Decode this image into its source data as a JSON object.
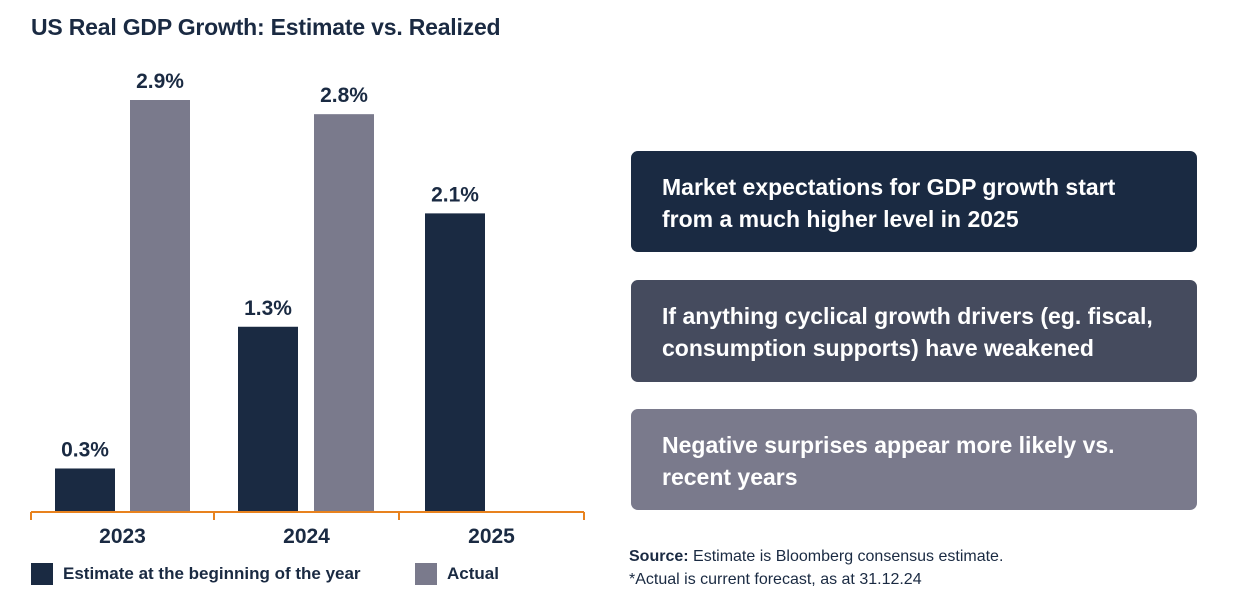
{
  "chart_data": {
    "type": "bar",
    "title": "US Real GDP Growth: Estimate vs. Realized",
    "categories": [
      "2023",
      "2024",
      "2025"
    ],
    "series": [
      {
        "name": "Estimate at the beginning of the year",
        "color": "#1a2a42",
        "values": [
          0.3,
          1.3,
          2.1
        ],
        "labels": [
          "0.3%",
          "1.3%",
          "2.1%"
        ]
      },
      {
        "name": "Actual",
        "color": "#7a7a8c",
        "values": [
          2.9,
          2.8,
          null
        ],
        "labels": [
          "2.9%",
          "2.8%",
          ""
        ]
      }
    ],
    "ylim": [
      0,
      2.9
    ],
    "xlabel": "",
    "ylabel": "",
    "axis_color": "#e8821e"
  },
  "legend": {
    "estimate_label": "Estimate at the beginning of the year",
    "actual_label": "Actual"
  },
  "boxes": [
    {
      "text": "Market expectations for GDP growth start from a much higher level in 2025"
    },
    {
      "text": "If anything cyclical growth drivers (eg. fiscal, consumption supports) have weakened"
    },
    {
      "text": "Negative surprises appear more likely vs. recent years"
    }
  ],
  "source": {
    "label": "Source:",
    "text": " Estimate is Bloomberg consensus estimate.",
    "note": "*Actual is current forecast, as at 31.12.24"
  }
}
